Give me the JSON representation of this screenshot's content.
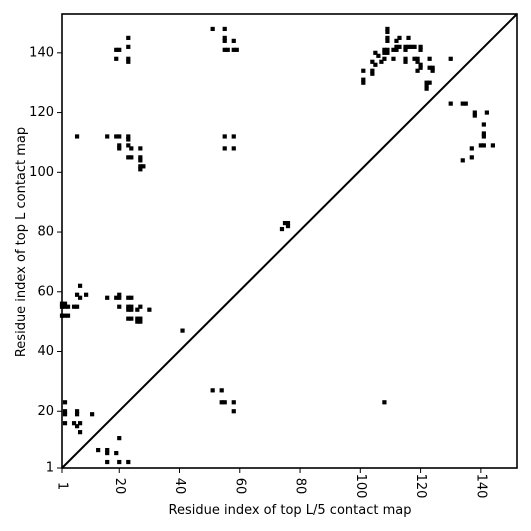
{
  "chart_data": {
    "type": "scatter",
    "title": "",
    "xlabel": "Residue index of top L/5 contact map",
    "ylabel": "Residue index of top L contact map",
    "xlim": [
      1,
      152
    ],
    "ylim": [
      1,
      153
    ],
    "xticks": [
      1,
      20,
      40,
      60,
      80,
      100,
      120,
      140
    ],
    "yticks": [
      1,
      20,
      40,
      60,
      80,
      100,
      120,
      140
    ],
    "grid": false,
    "legend": "none",
    "diagonal": {
      "from": [
        1,
        1
      ],
      "to": [
        152,
        153
      ]
    },
    "marker_color": "#000000",
    "series": [
      {
        "points": [
          [
            19,
            141
          ],
          [
            20,
            141
          ],
          [
            23,
            142
          ],
          [
            23,
            145
          ],
          [
            19,
            138
          ],
          [
            23,
            137
          ],
          [
            23,
            138
          ],
          [
            51,
            148
          ],
          [
            55,
            148
          ],
          [
            55,
            144
          ],
          [
            55,
            145
          ],
          [
            55,
            141
          ],
          [
            56,
            141
          ],
          [
            58,
            144
          ],
          [
            58,
            141
          ],
          [
            59,
            141
          ],
          [
            6,
            112
          ],
          [
            16,
            112
          ],
          [
            19,
            112
          ],
          [
            20,
            112
          ],
          [
            23,
            111
          ],
          [
            23,
            112
          ],
          [
            20,
            108
          ],
          [
            20,
            109
          ],
          [
            23,
            109
          ],
          [
            24,
            108
          ],
          [
            27,
            108
          ],
          [
            23,
            105
          ],
          [
            24,
            105
          ],
          [
            27,
            104
          ],
          [
            27,
            105
          ],
          [
            27,
            101
          ],
          [
            28,
            102
          ],
          [
            27,
            102
          ],
          [
            55,
            112
          ],
          [
            58,
            112
          ],
          [
            55,
            108
          ],
          [
            58,
            108
          ],
          [
            1,
            56
          ],
          [
            1,
            55
          ],
          [
            2,
            55
          ],
          [
            2,
            56
          ],
          [
            3,
            55
          ],
          [
            1,
            52
          ],
          [
            2,
            52
          ],
          [
            3,
            52
          ],
          [
            5,
            55
          ],
          [
            6,
            55
          ],
          [
            6,
            59
          ],
          [
            7,
            58
          ],
          [
            7,
            62
          ],
          [
            9,
            59
          ],
          [
            16,
            58
          ],
          [
            19,
            58
          ],
          [
            20,
            58
          ],
          [
            20,
            59
          ],
          [
            20,
            55
          ],
          [
            23,
            55
          ],
          [
            24,
            55
          ],
          [
            23,
            54
          ],
          [
            24,
            54
          ],
          [
            23,
            58
          ],
          [
            24,
            58
          ],
          [
            26,
            54
          ],
          [
            27,
            55
          ],
          [
            30,
            54
          ],
          [
            23,
            51
          ],
          [
            24,
            51
          ],
          [
            26,
            51
          ],
          [
            26,
            50
          ],
          [
            27,
            51
          ],
          [
            27,
            50
          ],
          [
            41,
            47
          ],
          [
            74,
            81
          ],
          [
            75,
            83
          ],
          [
            76,
            82
          ],
          [
            76,
            83
          ],
          [
            2,
            23
          ],
          [
            2,
            20
          ],
          [
            2,
            19
          ],
          [
            6,
            20
          ],
          [
            6,
            19
          ],
          [
            11,
            19
          ],
          [
            2,
            16
          ],
          [
            5,
            16
          ],
          [
            6,
            15
          ],
          [
            7,
            16
          ],
          [
            7,
            13
          ],
          [
            20,
            11
          ],
          [
            13,
            7
          ],
          [
            16,
            7
          ],
          [
            16,
            6
          ],
          [
            19,
            6
          ],
          [
            16,
            3
          ],
          [
            20,
            3
          ],
          [
            23,
            3
          ],
          [
            51,
            27
          ],
          [
            54,
            27
          ],
          [
            54,
            23
          ],
          [
            55,
            23
          ],
          [
            58,
            23
          ],
          [
            58,
            20
          ],
          [
            108,
            23
          ],
          [
            101,
            134
          ],
          [
            101,
            131
          ],
          [
            101,
            130
          ],
          [
            104,
            133
          ],
          [
            104,
            134
          ],
          [
            104,
            137
          ],
          [
            105,
            136
          ],
          [
            105,
            140
          ],
          [
            106,
            139
          ],
          [
            107,
            137
          ],
          [
            108,
            138
          ],
          [
            108,
            141
          ],
          [
            108,
            140
          ],
          [
            109,
            141
          ],
          [
            109,
            140
          ],
          [
            109,
            144
          ],
          [
            109,
            145
          ],
          [
            109,
            148
          ],
          [
            109,
            147
          ],
          [
            111,
            141
          ],
          [
            111,
            138
          ],
          [
            112,
            142
          ],
          [
            112,
            141
          ],
          [
            112,
            144
          ],
          [
            113,
            145
          ],
          [
            113,
            142
          ],
          [
            115,
            142
          ],
          [
            115,
            141
          ],
          [
            115,
            138
          ],
          [
            115,
            137
          ],
          [
            116,
            142
          ],
          [
            116,
            145
          ],
          [
            117,
            142
          ],
          [
            118,
            138
          ],
          [
            118,
            142
          ],
          [
            119,
            137
          ],
          [
            119,
            138
          ],
          [
            119,
            134
          ],
          [
            120,
            141
          ],
          [
            120,
            135
          ],
          [
            120,
            136
          ],
          [
            120,
            142
          ],
          [
            122,
            130
          ],
          [
            122,
            129
          ],
          [
            122,
            128
          ],
          [
            123,
            130
          ],
          [
            123,
            135
          ],
          [
            124,
            134
          ],
          [
            124,
            135
          ],
          [
            123,
            138
          ],
          [
            130,
            138
          ],
          [
            130,
            123
          ],
          [
            134,
            123
          ],
          [
            135,
            123
          ],
          [
            134,
            104
          ],
          [
            137,
            105
          ],
          [
            137,
            108
          ],
          [
            138,
            120
          ],
          [
            138,
            119
          ],
          [
            140,
            109
          ],
          [
            141,
            109
          ],
          [
            141,
            112
          ],
          [
            141,
            113
          ],
          [
            141,
            116
          ],
          [
            142,
            120
          ],
          [
            144,
            109
          ]
        ]
      }
    ]
  }
}
